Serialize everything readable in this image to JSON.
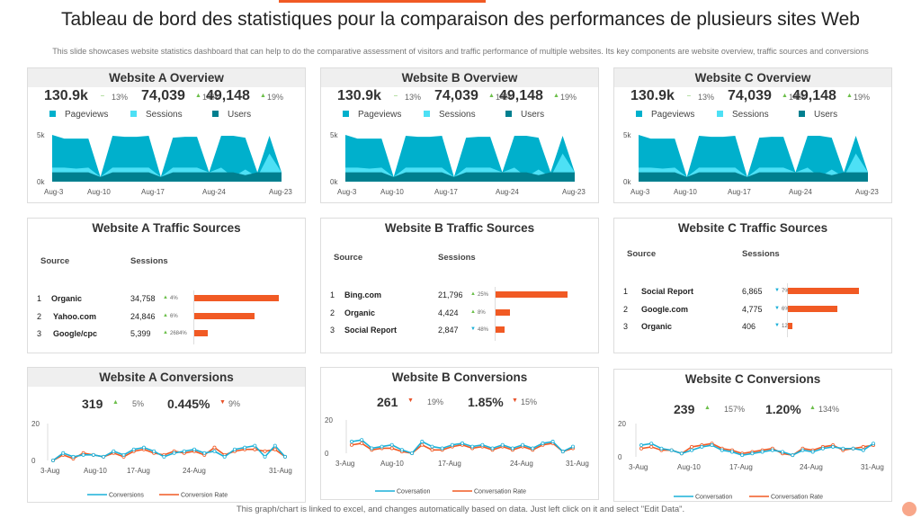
{
  "title": "Tableau de bord des statistiques pour la comparaison des performances de plusieurs sites Web",
  "subtitle": "This slide showcases website statistics dashboard that can help to do the comparative assessment of visitors and traffic performance of multiple websites. Its key components are website overview, traffic sources and conversions",
  "footer": "This graph/chart is linked to excel, and changes automatically based on data. Just left click on it and select \"Edit Data\".",
  "colors": {
    "accent": "#f15a24",
    "pageviews": "#00b0cc",
    "sessions": "#4de0f5",
    "users": "#007f8f",
    "bar": "#f15a24",
    "line1": "#1ab0d8",
    "line2": "#f15a24",
    "up": "#6cbf4a"
  },
  "overview": [
    {
      "title": "Website A Overview",
      "stats": [
        {
          "value": "130.9k",
          "dir": "flat",
          "change": "13%"
        },
        {
          "value": "74,039",
          "dir": "up",
          "change": "14%"
        },
        {
          "value": "49,148",
          "dir": "up",
          "change": "19%"
        }
      ],
      "chart_data": {
        "type": "area",
        "yticks": [
          "5k",
          "0k"
        ],
        "ylim": [
          0,
          5000
        ],
        "x_labels": [
          "Aug-3",
          "Aug-10",
          "Aug-17",
          "Aug-24",
          "Aug-23"
        ],
        "series": [
          {
            "name": "Pageviews",
            "values": [
              5000,
              4600,
              4600,
              4600,
              500,
              4900,
              4800,
              4800,
              4900,
              500,
              4700,
              4800,
              4800,
              1000,
              4900,
              4900,
              4700,
              1000,
              4900,
              1000
            ]
          },
          {
            "name": "Sessions",
            "values": [
              1500,
              1500,
              1400,
              1500,
              500,
              1500,
              1500,
              1500,
              1500,
              500,
              1500,
              1500,
              1500,
              1000,
              1500,
              500,
              1300,
              500,
              3000,
              1000
            ]
          },
          {
            "name": "Users",
            "values": [
              1000,
              1000,
              1000,
              1000,
              500,
              1000,
              1000,
              1000,
              1000,
              500,
              1000,
              1000,
              1000,
              1000,
              1000,
              1000,
              700,
              1000,
              1000,
              1000
            ]
          }
        ]
      }
    },
    {
      "title": "Website B Overview",
      "stats": [
        {
          "value": "130.9k",
          "dir": "flat",
          "change": "13%"
        },
        {
          "value": "74,039",
          "dir": "up",
          "change": "14%"
        },
        {
          "value": "49,148",
          "dir": "up",
          "change": "19%"
        }
      ],
      "chart_data": {
        "type": "area",
        "yticks": [
          "5k",
          "0k"
        ],
        "ylim": [
          0,
          5000
        ],
        "x_labels": [
          "Aug-3",
          "Aug-10",
          "Aug-17",
          "Aug-24",
          "Aug-23"
        ],
        "series": [
          {
            "name": "Pageviews",
            "values": [
              5000,
              4600,
              4600,
              4600,
              500,
              4900,
              4800,
              4800,
              4900,
              500,
              4700,
              4800,
              4800,
              1000,
              4900,
              4900,
              4700,
              1000,
              4900,
              1000
            ]
          },
          {
            "name": "Sessions",
            "values": [
              1500,
              1500,
              1400,
              1500,
              500,
              1500,
              1500,
              1500,
              1500,
              500,
              1500,
              1500,
              1500,
              1000,
              1500,
              500,
              1300,
              500,
              3000,
              1000
            ]
          },
          {
            "name": "Users",
            "values": [
              1000,
              1000,
              1000,
              1000,
              500,
              1000,
              1000,
              1000,
              1000,
              500,
              1000,
              1000,
              1000,
              1000,
              1000,
              1000,
              700,
              1000,
              1000,
              1000
            ]
          }
        ]
      }
    },
    {
      "title": "Website C Overview",
      "stats": [
        {
          "value": "130.9k",
          "dir": "flat",
          "change": "13%"
        },
        {
          "value": "74,039",
          "dir": "up",
          "change": "14%"
        },
        {
          "value": "49,148",
          "dir": "up",
          "change": "19%"
        }
      ],
      "chart_data": {
        "type": "area",
        "yticks": [
          "5k",
          "0k"
        ],
        "ylim": [
          0,
          5000
        ],
        "x_labels": [
          "Aug-3",
          "Aug-10",
          "Aug-17",
          "Aug-24",
          "Aug-23"
        ],
        "series": [
          {
            "name": "Pageviews",
            "values": [
              5000,
              4600,
              4600,
              4600,
              500,
              4900,
              4800,
              4800,
              4900,
              500,
              4700,
              4800,
              4800,
              1000,
              4900,
              4900,
              4700,
              1000,
              4900,
              1000
            ]
          },
          {
            "name": "Sessions",
            "values": [
              1500,
              1500,
              1400,
              1500,
              500,
              1500,
              1500,
              1500,
              1500,
              500,
              1500,
              1500,
              1500,
              1000,
              1500,
              500,
              1300,
              500,
              3000,
              1000
            ]
          },
          {
            "name": "Users",
            "values": [
              1000,
              1000,
              1000,
              1000,
              500,
              1000,
              1000,
              1000,
              1000,
              500,
              1000,
              1000,
              1000,
              1000,
              1000,
              1000,
              700,
              1000,
              1000,
              1000
            ]
          }
        ]
      }
    }
  ],
  "traffic": [
    {
      "title": "Website A Traffic Sources",
      "headers": {
        "source": "Source",
        "sessions": "Sessions"
      },
      "rows": [
        {
          "rank": "1",
          "source": "Organic",
          "sessions": "34,758",
          "value": 34758,
          "dir": "up",
          "change": "4%"
        },
        {
          "rank": "2",
          "source": "Yahoo.com",
          "sessions": "24,846",
          "value": 24846,
          "dir": "up",
          "change": "6%"
        },
        {
          "rank": "3",
          "source": "Google/cpc",
          "sessions": "5,399",
          "value": 5399,
          "dir": "up",
          "change": "2684%"
        }
      ]
    },
    {
      "title": "Website B Traffic Sources",
      "headers": {
        "source": "Source",
        "sessions": "Sessions"
      },
      "rows": [
        {
          "rank": "1",
          "source": "Bing.com",
          "sessions": "21,796",
          "value": 21796,
          "dir": "up",
          "change": "25%"
        },
        {
          "rank": "2",
          "source": "Organic",
          "sessions": "4,424",
          "value": 4424,
          "dir": "up",
          "change": "8%"
        },
        {
          "rank": "3",
          "source": "Social Report",
          "sessions": "2,847",
          "value": 2847,
          "dir": "down",
          "change": "48%"
        }
      ]
    },
    {
      "title": "Website C Traffic Sources",
      "headers": {
        "source": "Source",
        "sessions": "Sessions"
      },
      "rows": [
        {
          "rank": "1",
          "source": "Social Report",
          "sessions": "6,865",
          "value": 6865,
          "dir": "down",
          "change": "7%"
        },
        {
          "rank": "2",
          "source": "Google.com",
          "sessions": "4,775",
          "value": 4775,
          "dir": "down",
          "change": "6%"
        },
        {
          "rank": "3",
          "source": "Organic",
          "sessions": "406",
          "value": 406,
          "dir": "down",
          "change": "12%"
        }
      ]
    }
  ],
  "conversions": [
    {
      "title": "Website A Conversions",
      "stats": [
        {
          "value": "319",
          "dir": "up",
          "change": "5%"
        },
        {
          "value": "0.445%",
          "dir": "down",
          "change": "9%"
        }
      ],
      "chart_data": {
        "type": "line",
        "ylim": [
          0,
          20
        ],
        "yticks": [
          "20",
          "0"
        ],
        "x_labels": [
          "3-Aug",
          "Aug-10",
          "17-Aug",
          "24-Aug",
          "31-Aug"
        ],
        "series": [
          {
            "name": "Conversions",
            "values": [
              0,
              4,
              2,
              3,
              3,
              2,
              5,
              3,
              6,
              7,
              5,
              2,
              4,
              5,
              6,
              4,
              5,
              2,
              6,
              7,
              8,
              2,
              8,
              2
            ]
          },
          {
            "name": "Conversion Rate",
            "values": [
              0,
              3,
              1,
              4,
              3,
              2,
              4,
              2,
              5,
              6,
              4,
              3,
              5,
              4,
              5,
              3,
              7,
              3,
              5,
              6,
              6,
              5,
              6,
              2
            ]
          }
        ]
      }
    },
    {
      "title": "Website B Conversions",
      "stats": [
        {
          "value": "261",
          "dir": "down",
          "change": "19%"
        },
        {
          "value": "1.85%",
          "dir": "down",
          "change": "15%"
        }
      ],
      "chart_data": {
        "type": "line",
        "ylim": [
          0,
          20
        ],
        "yticks": [
          "20",
          "0"
        ],
        "x_labels": [
          "3-Aug",
          "Aug-10",
          "17-Aug",
          "24-Aug",
          "31-Aug"
        ],
        "series": [
          {
            "name": "Coversation",
            "values": [
              7,
              8,
              3,
              4,
              5,
              2,
              0,
              7,
              4,
              3,
              5,
              6,
              4,
              5,
              3,
              5,
              3,
              5,
              3,
              6,
              7,
              1,
              4
            ]
          },
          {
            "name": "Conversation Rate",
            "values": [
              5,
              6,
              2,
              3,
              3,
              1,
              0,
              5,
              2,
              2,
              4,
              5,
              3,
              4,
              2,
              4,
              2,
              4,
              2,
              5,
              6,
              1,
              3
            ]
          }
        ]
      }
    },
    {
      "title": "Website C Conversions",
      "stats": [
        {
          "value": "239",
          "dir": "up",
          "change": "157%"
        },
        {
          "value": "1.20%",
          "dir": "up",
          "change": "134%"
        }
      ],
      "chart_data": {
        "type": "line",
        "ylim": [
          0,
          20
        ],
        "yticks": [
          "20",
          "0"
        ],
        "x_labels": [
          "3-Aug",
          "Aug-10",
          "17-Aug",
          "24-Aug",
          "31-Aug"
        ],
        "series": [
          {
            "name": "Conversation",
            "values": [
              7,
              8,
              5,
              4,
              2,
              4,
              6,
              7,
              4,
              3,
              1,
              2,
              3,
              4,
              3,
              1,
              4,
              3,
              5,
              6,
              5,
              5,
              4,
              8
            ]
          },
          {
            "name": "Conversation Rate",
            "values": [
              5,
              6,
              4,
              4,
              2,
              6,
              7,
              8,
              5,
              4,
              2,
              3,
              4,
              5,
              2,
              1,
              5,
              4,
              6,
              7,
              4,
              5,
              6,
              7
            ]
          }
        ]
      }
    }
  ]
}
